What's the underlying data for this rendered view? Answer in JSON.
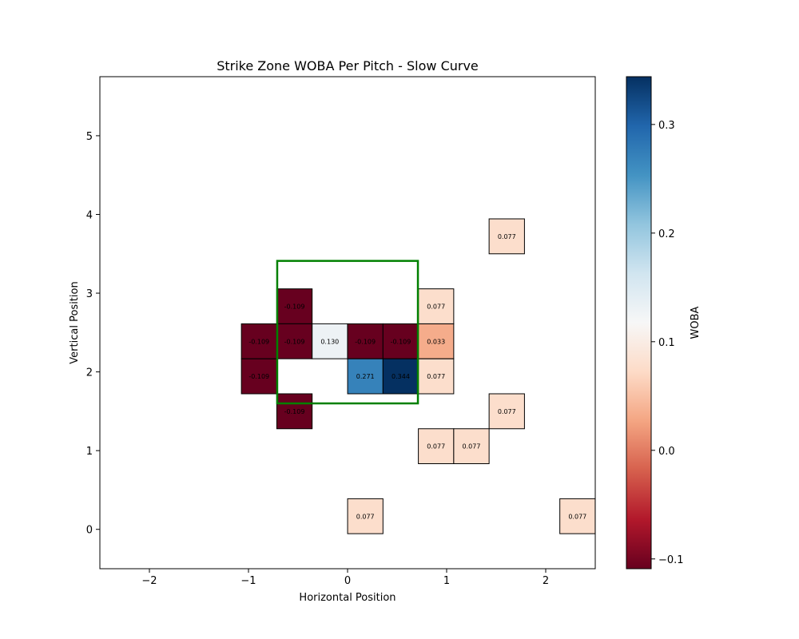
{
  "chart_data": {
    "type": "heatmap",
    "title": "Strike Zone WOBA Per Pitch - Slow Curve",
    "xlabel": "Horizontal Position",
    "ylabel": "Vertical Position",
    "xlim": [
      -2.5,
      2.5
    ],
    "ylim": [
      -0.5,
      5.75
    ],
    "xticks": [
      -2,
      -1,
      0,
      1,
      2
    ],
    "yticks": [
      0,
      1,
      2,
      3,
      4,
      5
    ],
    "grid": false,
    "cell_width": 0.357,
    "cell_height": 0.444,
    "cells": [
      {
        "x": -0.536,
        "y": 2.833,
        "value": -0.109,
        "label": "-0.109"
      },
      {
        "x": -0.893,
        "y": 2.389,
        "value": -0.109,
        "label": "-0.109"
      },
      {
        "x": -0.536,
        "y": 2.389,
        "value": -0.109,
        "label": "-0.109"
      },
      {
        "x": -0.179,
        "y": 2.389,
        "value": 0.13,
        "label": "0.130"
      },
      {
        "x": 0.179,
        "y": 2.389,
        "value": -0.109,
        "label": "-0.109"
      },
      {
        "x": 0.536,
        "y": 2.389,
        "value": -0.109,
        "label": "-0.109"
      },
      {
        "x": 0.893,
        "y": 2.389,
        "value": 0.033,
        "label": "0.033"
      },
      {
        "x": 0.893,
        "y": 2.833,
        "value": 0.077,
        "label": "0.077"
      },
      {
        "x": 1.607,
        "y": 3.722,
        "value": 0.077,
        "label": "0.077"
      },
      {
        "x": -0.893,
        "y": 1.944,
        "value": -0.109,
        "label": "-0.109"
      },
      {
        "x": 0.179,
        "y": 1.944,
        "value": 0.271,
        "label": "0.271"
      },
      {
        "x": 0.536,
        "y": 1.944,
        "value": 0.344,
        "label": "0.344"
      },
      {
        "x": 0.893,
        "y": 1.944,
        "value": 0.077,
        "label": "0.077"
      },
      {
        "x": -0.536,
        "y": 1.5,
        "value": -0.109,
        "label": "-0.109"
      },
      {
        "x": 1.607,
        "y": 1.5,
        "value": 0.077,
        "label": "0.077"
      },
      {
        "x": 0.893,
        "y": 1.056,
        "value": 0.077,
        "label": "0.077"
      },
      {
        "x": 1.25,
        "y": 1.056,
        "value": 0.077,
        "label": "0.077"
      },
      {
        "x": 0.179,
        "y": 0.167,
        "value": 0.077,
        "label": "0.077"
      },
      {
        "x": 2.321,
        "y": 0.167,
        "value": 0.077,
        "label": "0.077"
      }
    ],
    "strike_zone": {
      "x": [
        -0.71,
        0.71
      ],
      "y": [
        1.6,
        3.41
      ],
      "color": "#008000"
    },
    "colorbar": {
      "label": "WOBA",
      "range": [
        -0.109,
        0.344
      ],
      "ticks": [
        -0.1,
        0.0,
        0.1,
        0.2,
        0.3
      ],
      "tick_labels": [
        "−0.1",
        "0.0",
        "0.1",
        "0.2",
        "0.3"
      ],
      "colormap": "RdBu",
      "colors": [
        "#67001f",
        "#b2182b",
        "#d6604d",
        "#f4a582",
        "#fddbc7",
        "#f7f7f7",
        "#d1e5f0",
        "#92c5de",
        "#4393c3",
        "#2166ac",
        "#053061"
      ]
    }
  }
}
